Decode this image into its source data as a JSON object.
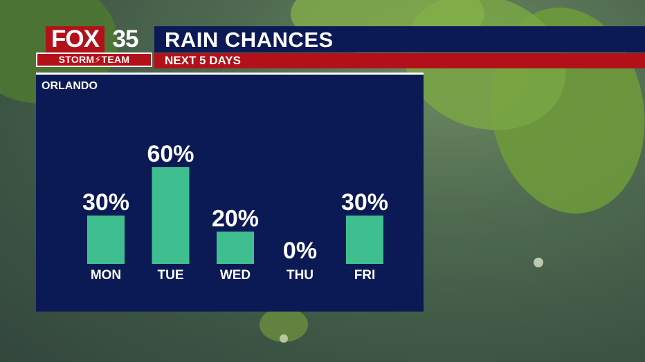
{
  "header": {
    "logo_fox": "FOX",
    "logo_number": "35",
    "logo_storm_team": "STORM⚡TEAM",
    "title": "RAIN CHANCES",
    "subtitle": "NEXT 5 DAYS"
  },
  "colors": {
    "navy": "#0b1a55",
    "red": "#b3111a",
    "bar": "#3fbf8f"
  },
  "chart_data": {
    "type": "bar",
    "title": "ORLANDO",
    "categories": [
      "MON",
      "TUE",
      "WED",
      "THU",
      "FRI"
    ],
    "values": [
      30,
      60,
      20,
      0,
      30
    ],
    "value_labels": [
      "30%",
      "60%",
      "20%",
      "0%",
      "30%"
    ],
    "ylim": [
      0,
      60
    ],
    "grid": false,
    "legend": "none"
  }
}
